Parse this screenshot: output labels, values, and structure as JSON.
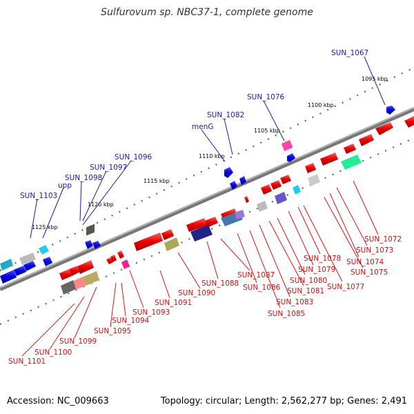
{
  "title": "Sulfurovum sp. NBC37-1, complete genome",
  "footer": {
    "accession": "Accession: NC_009663",
    "summary": "Topology: circular; Length: 2,562,277 bp; Genes: 2,491"
  },
  "ticks": [
    {
      "label": "1095 kbp"
    },
    {
      "label": "1100 kbp"
    },
    {
      "label": "1105 kbp"
    },
    {
      "label": "1110 kbp"
    },
    {
      "label": "1115 kbp"
    },
    {
      "label": "1120 kbp"
    },
    {
      "label": "1125 kbp"
    }
  ],
  "top_labels": [
    "SUN_1067",
    "SUN_1076",
    "SUN_1082",
    "menG",
    "SUN_1096",
    "SUN_1097",
    "SUN_1098",
    "upp",
    "SUN_1103"
  ],
  "bottom_labels": [
    "SUN_1072",
    "SUN_1073",
    "SUN_1074",
    "SUN_1075",
    "SUN_1077",
    "SUN_1078",
    "SUN_1079",
    "SUN_1080",
    "SUN_1081",
    "SUN_1083",
    "SUN_1085",
    "SUN_1086",
    "SUN_1087",
    "SUN_1088",
    "SUN_1090",
    "SUN_1091",
    "SUN_1093",
    "SUN_1094",
    "SUN_1095",
    "SUN_1099",
    "SUN_1100",
    "SUN_1101"
  ],
  "colors": {
    "forward_gene": "#ee1111",
    "reverse_gene": "#1111ee",
    "backbone": "#888888",
    "tick_dots": "#2a8a2a"
  }
}
